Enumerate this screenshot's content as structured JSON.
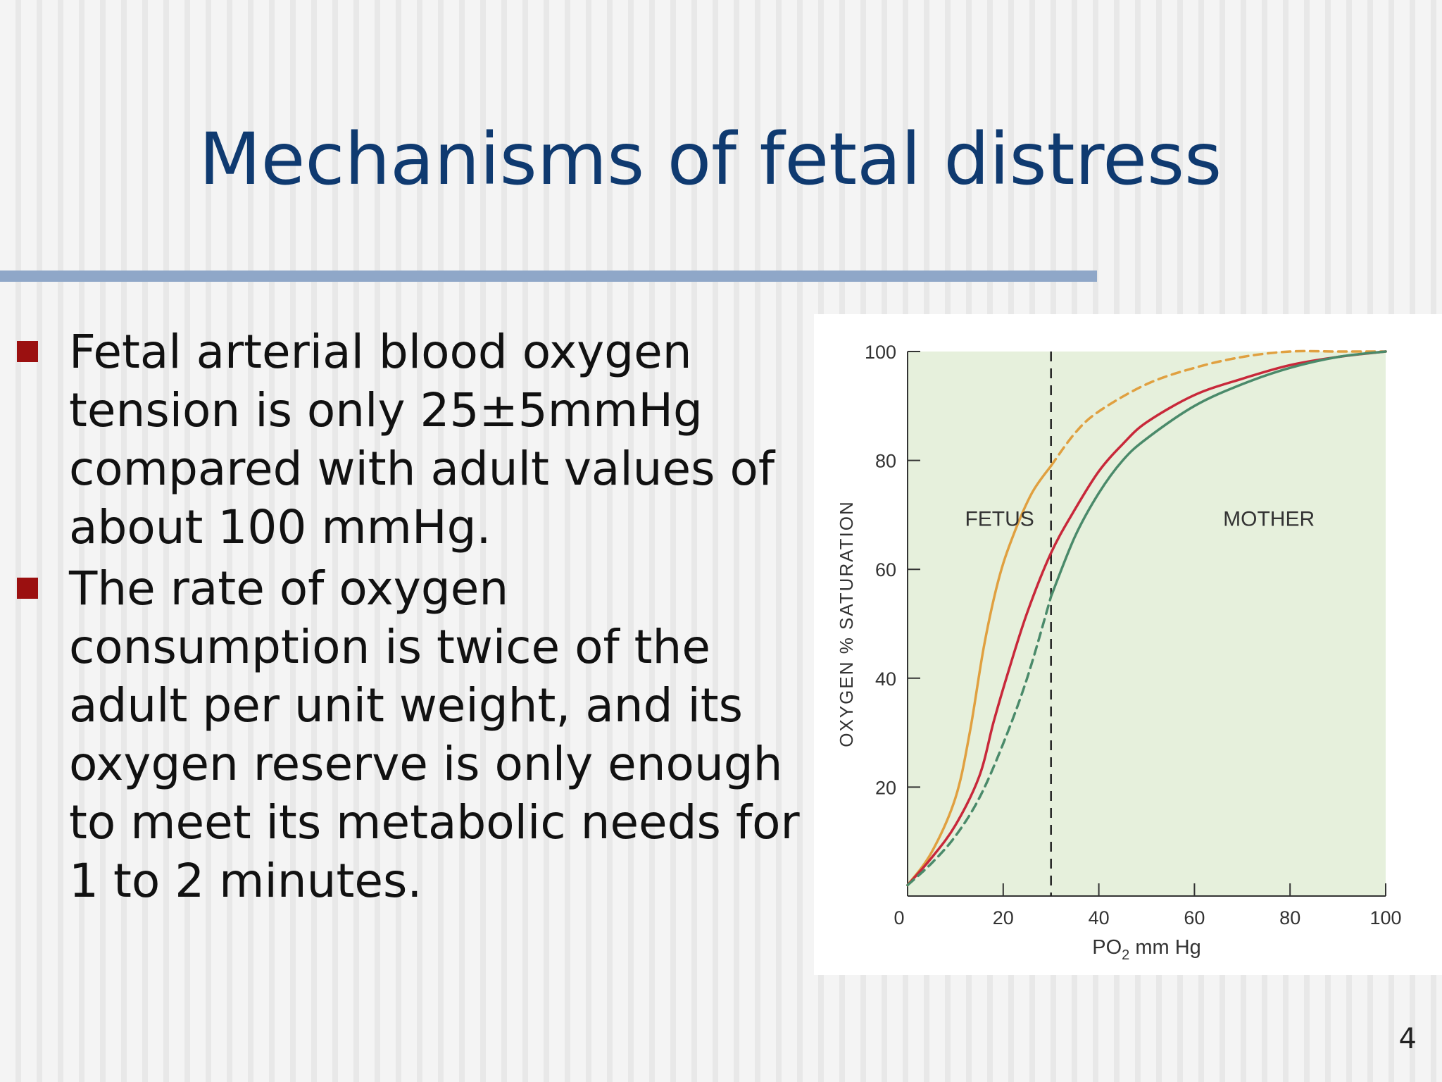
{
  "slide": {
    "title": "Mechanisms of fetal distress",
    "bullets": [
      [
        "Fetal arterial blood oxygen",
        "tension is only 25±5mmHg",
        "compared with adult values of",
        "about 100 mmHg."
      ],
      [
        "The rate of oxygen",
        "consumption is twice of the",
        "adult per unit weight, and its",
        "oxygen reserve is only enough",
        "to meet its metabolic needs for",
        "1 to 2 minutes."
      ]
    ],
    "page_number": "4"
  },
  "chart_data": {
    "type": "line",
    "title": "",
    "xlabel": "PO",
    "xlabel_sub": "2",
    "xlabel_suffix": " mm Hg",
    "ylabel": "OXYGEN % SATURATION",
    "xlim": [
      0,
      100
    ],
    "ylim": [
      0,
      100
    ],
    "x_ticks": [
      0,
      20,
      40,
      60,
      80,
      100
    ],
    "y_ticks": [
      20,
      40,
      60,
      80,
      100
    ],
    "annotations": [
      {
        "text": "FETUS",
        "x": 12,
        "y": 68
      },
      {
        "text": "MOTHER",
        "x": 66,
        "y": 68
      }
    ],
    "reference_line": {
      "x": 30,
      "style": "dashed",
      "color": "#222222"
    },
    "colors": {
      "plot_bg": "#e6f0dc",
      "axis": "#333333"
    },
    "series": [
      {
        "color": "#e0a040",
        "style": "solid",
        "points": [
          [
            0,
            2
          ],
          [
            5,
            8
          ],
          [
            10,
            18
          ],
          [
            13,
            30
          ],
          [
            16,
            46
          ],
          [
            19,
            58
          ],
          [
            22,
            66
          ],
          [
            26,
            74
          ],
          [
            30,
            79
          ]
        ]
      },
      {
        "color": "#e0a040",
        "style": "dashed",
        "points": [
          [
            30,
            79
          ],
          [
            35,
            85
          ],
          [
            40,
            89
          ],
          [
            50,
            94
          ],
          [
            60,
            97
          ],
          [
            70,
            99
          ],
          [
            80,
            100
          ],
          [
            90,
            100
          ],
          [
            100,
            100
          ]
        ]
      },
      {
        "color": "#c8283a",
        "style": "solid",
        "points": [
          [
            0,
            2
          ],
          [
            5,
            7
          ],
          [
            10,
            13
          ],
          [
            15,
            22
          ],
          [
            18,
            32
          ],
          [
            21,
            41
          ],
          [
            25,
            52
          ],
          [
            30,
            63
          ],
          [
            35,
            71
          ],
          [
            40,
            78
          ],
          [
            45,
            83
          ],
          [
            50,
            87
          ],
          [
            60,
            92
          ],
          [
            70,
            95
          ],
          [
            80,
            97.5
          ],
          [
            90,
            99
          ],
          [
            100,
            100
          ]
        ]
      },
      {
        "color": "#4a8a6a",
        "style": "dashed",
        "points": [
          [
            0,
            2
          ],
          [
            5,
            6
          ],
          [
            10,
            11
          ],
          [
            15,
            18
          ],
          [
            20,
            28
          ],
          [
            25,
            40
          ],
          [
            30,
            55
          ]
        ]
      },
      {
        "color": "#4a8a6a",
        "style": "solid",
        "points": [
          [
            30,
            55
          ],
          [
            35,
            66
          ],
          [
            40,
            74
          ],
          [
            45,
            80
          ],
          [
            50,
            84
          ],
          [
            60,
            90
          ],
          [
            70,
            94
          ],
          [
            80,
            97
          ],
          [
            90,
            99
          ],
          [
            100,
            100
          ]
        ]
      }
    ]
  }
}
